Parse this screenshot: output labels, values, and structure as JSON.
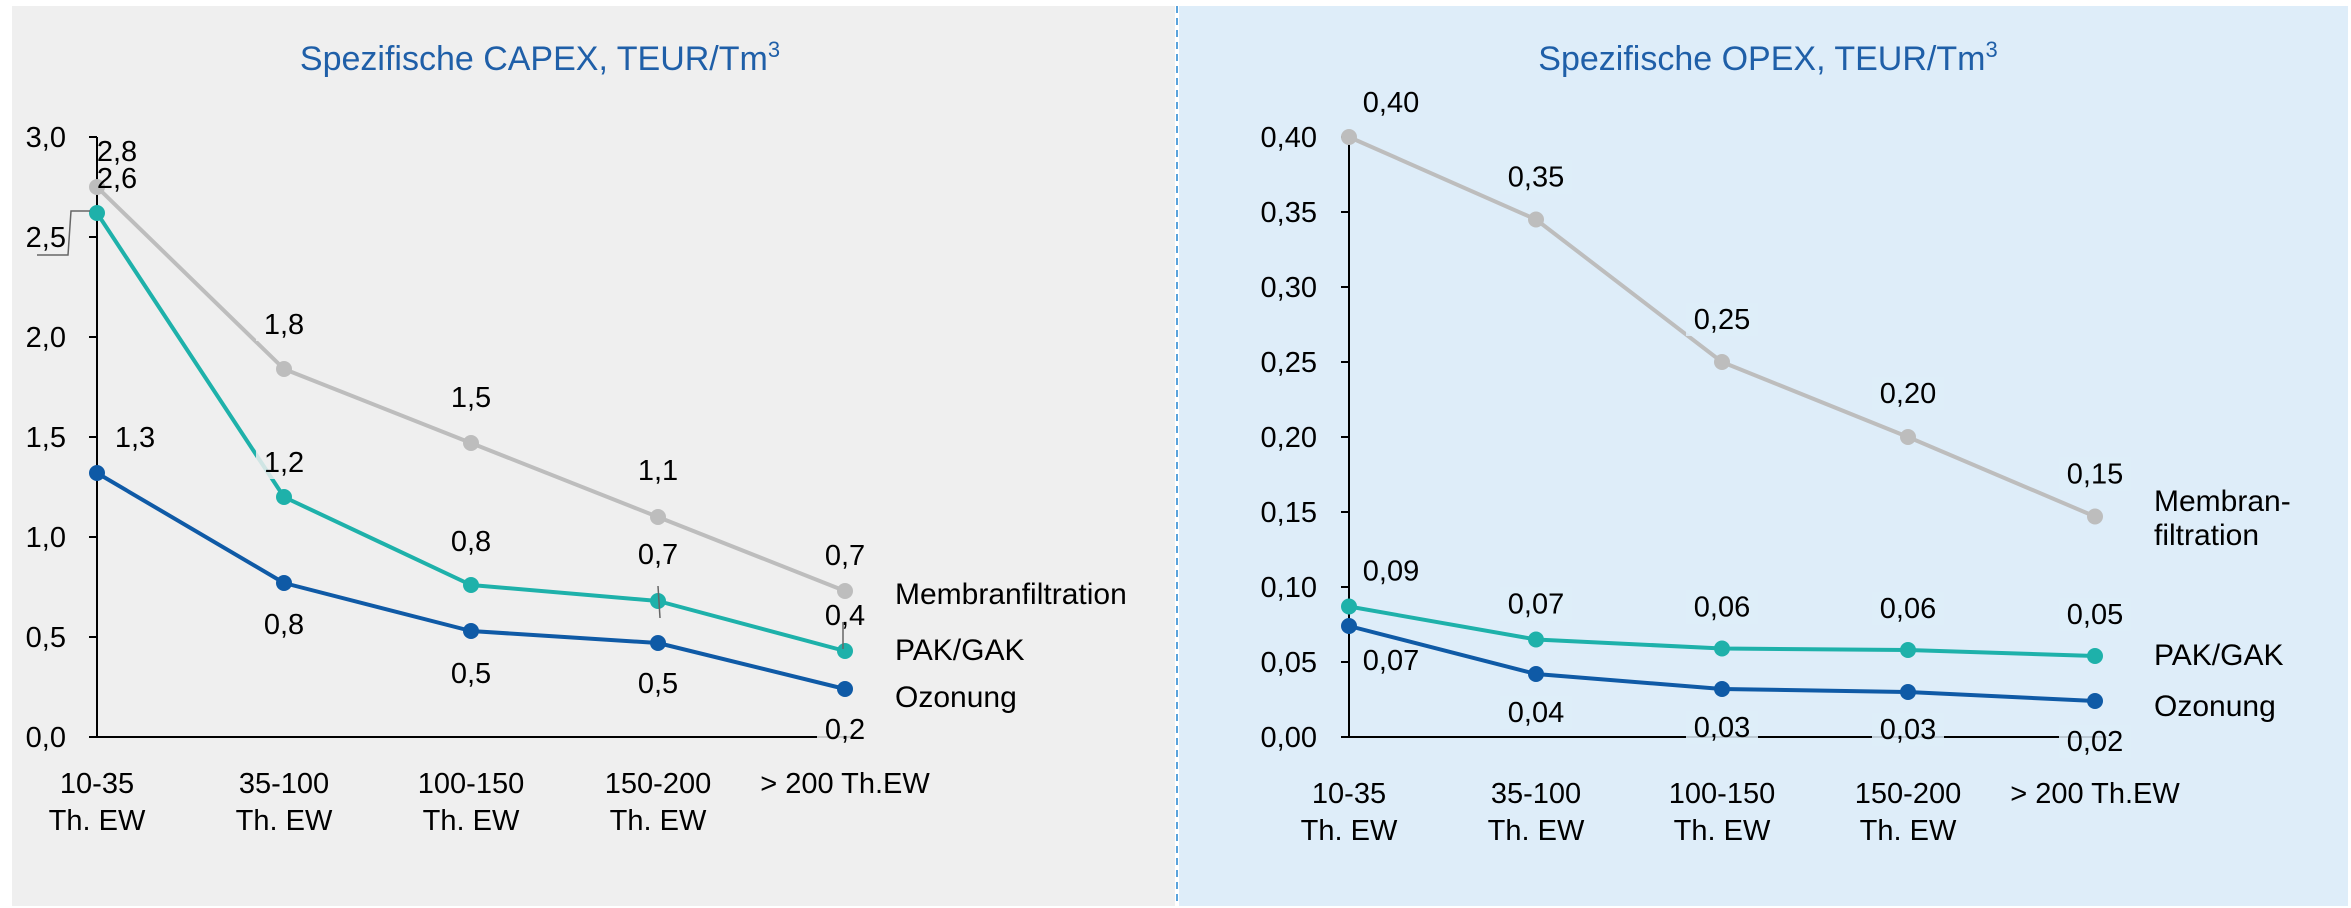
{
  "colors": {
    "left_panel_bg": "#efefef",
    "right_panel_bg": "#deedf9",
    "divider": "#5aa3dc",
    "title": "#1f5fa8",
    "Membranfiltration": "#bdbdbd",
    "PAK/GAK": "#1eb1aa",
    "Ozonung": "#0f5aa6"
  },
  "chart_data": [
    {
      "type": "line",
      "title": "Spezifische CAPEX, TEUR/Tm",
      "title_sup": "3",
      "categories": [
        [
          "10-35",
          "Th. EW"
        ],
        [
          "35-100",
          "Th. EW"
        ],
        [
          "100-150",
          "Th. EW"
        ],
        [
          "150-200",
          "Th. EW"
        ],
        [
          "> 200 Th.EW"
        ]
      ],
      "ylim": [
        0,
        3
      ],
      "yticks": [
        "0,0",
        "0,5",
        "1,0",
        "1,5",
        "2,0",
        "2,5",
        "3,0"
      ],
      "series": [
        {
          "name": "Membranfiltration",
          "name_lines": [
            "Membranfiltration"
          ],
          "values": [
            2.75,
            1.84,
            1.47,
            1.1,
            0.73
          ],
          "labels": [
            "2,8",
            "1,8",
            "1,5",
            "1,1",
            "0,7"
          ]
        },
        {
          "name": "PAK/GAK",
          "name_lines": [
            "PAK/GAK"
          ],
          "values": [
            2.62,
            1.2,
            0.76,
            0.68,
            0.43
          ],
          "labels": [
            "2,6",
            "1,2",
            "0,8",
            "0,7",
            "0,4"
          ]
        },
        {
          "name": "Ozonung",
          "name_lines": [
            "Ozonung"
          ],
          "values": [
            1.32,
            0.77,
            0.53,
            0.47,
            0.24
          ],
          "labels": [
            "1,3",
            "0,8",
            "0,5",
            "0,5",
            "0,2"
          ]
        }
      ]
    },
    {
      "type": "line",
      "title": "Spezifische OPEX, TEUR/Tm",
      "title_sup": "3",
      "categories": [
        [
          "10-35",
          "Th. EW"
        ],
        [
          "35-100",
          "Th. EW"
        ],
        [
          "100-150",
          "Th. EW"
        ],
        [
          "150-200",
          "Th. EW"
        ],
        [
          "> 200 Th.EW"
        ]
      ],
      "ylim": [
        0,
        0.4
      ],
      "yticks": [
        "0,00",
        "0,05",
        "0,10",
        "0,15",
        "0,20",
        "0,25",
        "0,30",
        "0,35",
        "0,40"
      ],
      "series": [
        {
          "name": "Membranfiltration",
          "name_lines": [
            "Membran-",
            "filtration"
          ],
          "values": [
            0.4,
            0.345,
            0.25,
            0.2,
            0.147
          ],
          "labels": [
            "0,40",
            "0,35",
            "0,25",
            "0,20",
            "0,15"
          ]
        },
        {
          "name": "PAK/GAK",
          "name_lines": [
            "PAK/GAK"
          ],
          "values": [
            0.087,
            0.065,
            0.059,
            0.058,
            0.054
          ],
          "labels": [
            "0,09",
            "0,07",
            "0,06",
            "0,06",
            "0,05"
          ]
        },
        {
          "name": "Ozonung",
          "name_lines": [
            "Ozonung"
          ],
          "values": [
            0.074,
            0.042,
            0.032,
            0.03,
            0.024
          ],
          "labels": [
            "0,07",
            "0,04",
            "0,03",
            "0,03",
            "0,02"
          ]
        }
      ]
    }
  ]
}
